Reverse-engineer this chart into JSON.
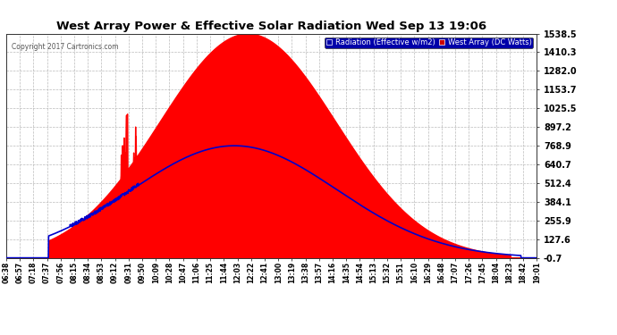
{
  "title": "West Array Power & Effective Solar Radiation Wed Sep 13 19:06",
  "copyright": "Copyright 2017 Cartronics.com",
  "legend_radiation": "Radiation (Effective w/m2)",
  "legend_west": "West Array (DC Watts)",
  "yticks": [
    -0.7,
    127.6,
    255.9,
    384.1,
    512.4,
    640.7,
    768.9,
    897.2,
    1025.5,
    1153.7,
    1282.0,
    1410.3,
    1538.5
  ],
  "ymin": -0.7,
  "ymax": 1538.5,
  "background_color": "#ffffff",
  "plot_bg_color": "#ffffff",
  "grid_color": "#aaaaaa",
  "red_color": "#ff0000",
  "blue_color": "#0000cc",
  "title_color": "#000000",
  "tick_color": "#000000",
  "xtick_labels": [
    "06:38",
    "06:57",
    "07:18",
    "07:37",
    "07:56",
    "08:15",
    "08:34",
    "08:53",
    "09:12",
    "09:31",
    "09:50",
    "10:09",
    "10:28",
    "10:47",
    "11:06",
    "11:25",
    "11:44",
    "12:03",
    "12:22",
    "12:41",
    "13:00",
    "13:19",
    "13:38",
    "13:57",
    "14:16",
    "14:35",
    "14:54",
    "15:13",
    "15:32",
    "15:51",
    "16:10",
    "16:29",
    "16:48",
    "17:07",
    "17:26",
    "17:45",
    "18:04",
    "18:23",
    "18:42",
    "19:01"
  ],
  "num_points": 40,
  "legend_radiation_bg": "#0000aa",
  "legend_west_bg": "#cc0000"
}
